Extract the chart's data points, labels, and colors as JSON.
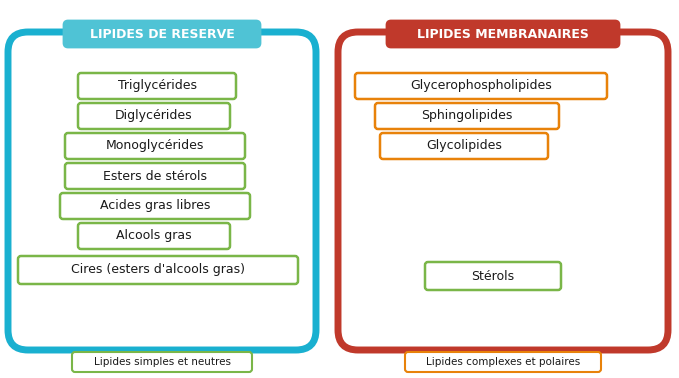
{
  "left_title": "LIPIDES DE RESERVE",
  "left_title_bg": "#4fc3d5",
  "left_border_color": "#1ab0d0",
  "left_items": [
    "Triglycérides",
    "Diglycérides",
    "Monoglycérides",
    "Esters de stérols",
    "Acides gras libres",
    "Alcools gras",
    "Cires (esters d'alcools gras)"
  ],
  "left_item_border": "#7ab648",
  "left_subtitle": "Lipides simples et neutres",
  "left_subtitle_border": "#7ab648",
  "right_title": "LIPIDES MEMBRANAIRES",
  "right_title_bg": "#c0392b",
  "right_border_color": "#c0392b",
  "right_top_items": [
    "Glycerophospholipides",
    "Sphingolipides",
    "Glycolipides"
  ],
  "right_top_item_border": "#e8820a",
  "right_bottom_item": "Stérols",
  "right_bottom_item_border": "#7ab648",
  "right_subtitle": "Lipides complexes et polaires",
  "right_subtitle_border": "#e8820a",
  "bg_color": "#ffffff",
  "text_color": "#1a1a1a",
  "title_text_color": "#ffffff",
  "fig_width": 6.79,
  "fig_height": 3.78,
  "dpi": 100
}
